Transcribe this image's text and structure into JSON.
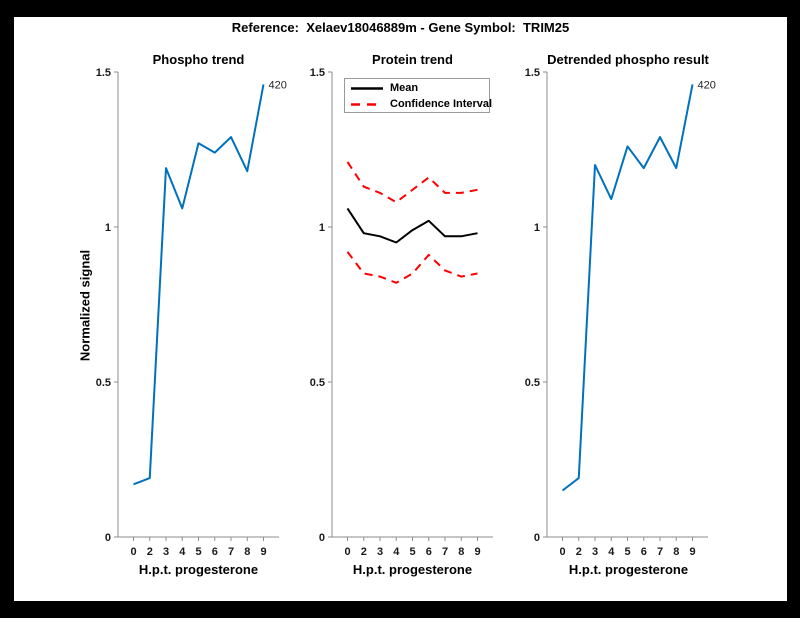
{
  "figure": {
    "title": "Reference:  Xelaev18046889m - Gene Symbol:  TRIM25"
  },
  "colors": {
    "background": "#000000",
    "canvas": "#ffffff",
    "axis": "#8c8c8c",
    "tick_text": "#1a1a1a",
    "blue": "#0072BD",
    "mean": "#000000",
    "ci": "#ff0000"
  },
  "axis": {
    "ylabel": "Normalized signal",
    "xlabel": "H.p.t. progesterone",
    "y_ticks": [
      {
        "v": 0,
        "label": "0"
      },
      {
        "v": 0.5,
        "label": "0.5"
      },
      {
        "v": 1,
        "label": "1"
      },
      {
        "v": 1.5,
        "label": "1.5"
      }
    ]
  },
  "chart_data": [
    {
      "type": "line",
      "title": "Phospho trend",
      "xlabel": "H.p.t. progesterone",
      "ylabel": "Normalized signal",
      "ylim": [
        0,
        1.5
      ],
      "categories": [
        "0",
        "2",
        "3",
        "4",
        "5",
        "6",
        "7",
        "8",
        "9"
      ],
      "series": [
        {
          "name": "phospho-signal",
          "color": "#0072BD",
          "style": "solid",
          "values": [
            0.17,
            0.19,
            1.19,
            1.06,
            1.27,
            1.24,
            1.29,
            1.18,
            1.46
          ]
        }
      ],
      "annotation": "420"
    },
    {
      "type": "line",
      "title": "Protein trend",
      "xlabel": "H.p.t. progesterone",
      "ylabel": "",
      "ylim": [
        0,
        1.5
      ],
      "categories": [
        "0",
        "2",
        "3",
        "4",
        "5",
        "6",
        "7",
        "8",
        "9"
      ],
      "legend_items": [
        "Mean",
        "Confidence Interval"
      ],
      "series": [
        {
          "name": "mean",
          "color": "#000000",
          "style": "solid",
          "values": [
            1.06,
            0.98,
            0.97,
            0.95,
            0.99,
            1.02,
            0.97,
            0.97,
            0.98
          ]
        },
        {
          "name": "ci-upper",
          "color": "#ff0000",
          "style": "dashed",
          "values": [
            1.21,
            1.13,
            1.11,
            1.08,
            1.12,
            1.16,
            1.11,
            1.11,
            1.12
          ]
        },
        {
          "name": "ci-lower",
          "color": "#ff0000",
          "style": "dashed",
          "values": [
            0.92,
            0.85,
            0.84,
            0.82,
            0.85,
            0.91,
            0.86,
            0.84,
            0.85
          ]
        }
      ]
    },
    {
      "type": "line",
      "title": "Detrended phospho result",
      "xlabel": "H.p.t. progesterone",
      "ylabel": "",
      "ylim": [
        0,
        1.5
      ],
      "categories": [
        "0",
        "2",
        "3",
        "4",
        "5",
        "6",
        "7",
        "8",
        "9"
      ],
      "series": [
        {
          "name": "detrended-phospho-signal",
          "color": "#0072BD",
          "style": "solid",
          "values": [
            0.15,
            0.19,
            1.2,
            1.09,
            1.26,
            1.19,
            1.29,
            1.19,
            1.46
          ]
        }
      ],
      "annotation": "420"
    }
  ]
}
